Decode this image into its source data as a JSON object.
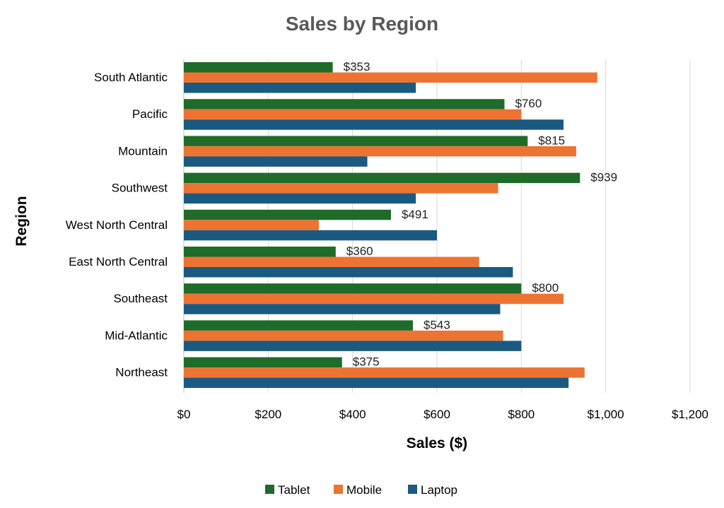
{
  "chart_data": {
    "type": "bar",
    "orientation": "horizontal",
    "title": "Sales by Region",
    "xlabel": "Sales ($)",
    "ylabel": "Region",
    "xlim": [
      0,
      1200
    ],
    "x_ticks": [
      0,
      200,
      400,
      600,
      800,
      1000,
      1200
    ],
    "x_tick_labels": [
      "$0",
      "$200",
      "$400",
      "$600",
      "$800",
      "$1,000",
      "$1,200"
    ],
    "grid": true,
    "legend_position": "bottom",
    "categories": [
      "South Atlantic",
      "Pacific",
      "Mountain",
      "Southwest",
      "West North Central",
      "East North Central",
      "Southeast",
      "Mid-Atlantic",
      "Northeast"
    ],
    "series": [
      {
        "name": "Tablet",
        "color": "#1f6b2a",
        "values": [
          353,
          760,
          815,
          939,
          491,
          360,
          800,
          543,
          375
        ],
        "data_labels": [
          "$353",
          "$760",
          "$815",
          "$939",
          "$491",
          "$360",
          "$800",
          "$543",
          "$375"
        ]
      },
      {
        "name": "Mobile",
        "color": "#ed7333",
        "values": [
          980,
          800,
          930,
          745,
          320,
          700,
          900,
          757,
          950
        ]
      },
      {
        "name": "Laptop",
        "color": "#1a5a80",
        "values": [
          550,
          900,
          435,
          550,
          600,
          780,
          750,
          800,
          912
        ]
      }
    ]
  }
}
